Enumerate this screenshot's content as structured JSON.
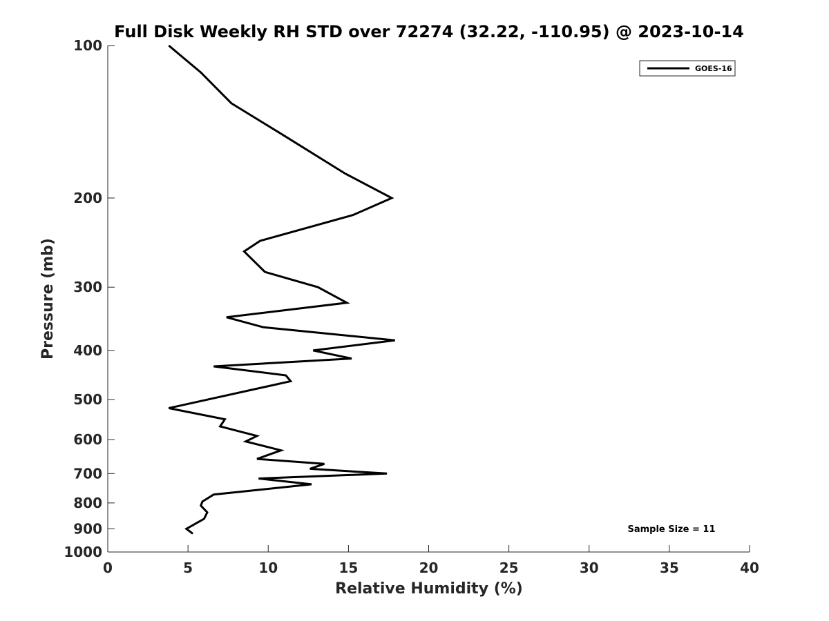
{
  "chart_data": {
    "type": "line",
    "title": "Full Disk Weekly RH STD over 72274 (32.22, -110.95) @ 2023-10-14",
    "xlabel": "Relative Humidity (%)",
    "ylabel": "Pressure (mb)",
    "xlim": [
      0,
      40
    ],
    "ylim": [
      100,
      1000
    ],
    "y_scale": "log",
    "y_reversed": true,
    "x_ticks": [
      "0",
      "5",
      "10",
      "15",
      "20",
      "25",
      "30",
      "35",
      "40"
    ],
    "y_ticks": [
      "100",
      "200",
      "300",
      "400",
      "500",
      "600",
      "700",
      "800",
      "900",
      "1000"
    ],
    "legend": {
      "position": "top-right",
      "entries": [
        "GOES-16"
      ]
    },
    "annotation": "Sample Size = 11",
    "series": [
      {
        "name": "GOES-16",
        "color": "#000000",
        "x": [
          3.8,
          5.8,
          7.7,
          10.9,
          14.8,
          17.7,
          15.3,
          9.5,
          8.5,
          9.8,
          13.1,
          14.9,
          7.4,
          9.7,
          17.9,
          12.8,
          15.2,
          6.6,
          11.1,
          11.4,
          3.8,
          7.3,
          7.0,
          9.3,
          8.6,
          10.8,
          9.3,
          13.5,
          12.6,
          17.4,
          9.4,
          12.7,
          6.6,
          5.9,
          5.8,
          6.2,
          6.0,
          4.9,
          5.3
        ],
        "y": [
          100,
          113,
          130,
          150,
          179,
          200,
          216,
          243,
          255,
          280,
          300,
          322,
          344,
          360,
          382,
          400,
          415,
          430,
          448,
          460,
          520,
          547,
          565,
          590,
          605,
          630,
          655,
          670,
          685,
          700,
          716,
          735,
          770,
          795,
          810,
          835,
          860,
          900,
          920
        ]
      }
    ]
  }
}
